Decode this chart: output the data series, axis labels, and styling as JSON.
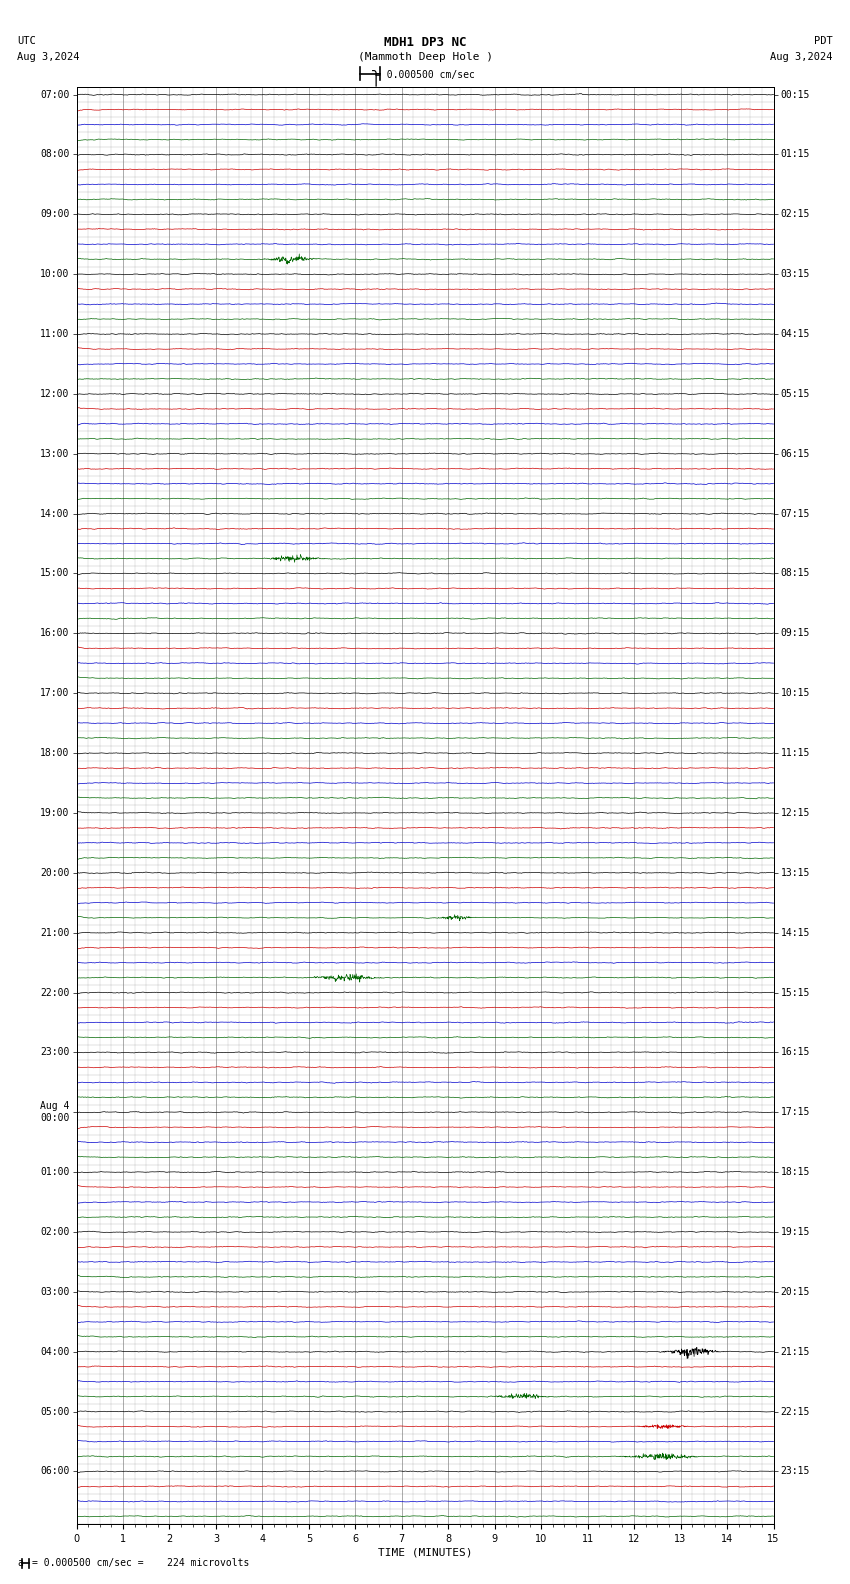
{
  "title_line1": "MDH1 DP3 NC",
  "title_line2": "(Mammoth Deep Hole )",
  "scale_label": "= 0.000500 cm/sec",
  "left_header": "UTC",
  "left_date": "Aug 3,2024",
  "right_header": "PDT",
  "right_date": "Aug 3,2024",
  "bottom_label": "TIME (MINUTES)",
  "footer_label": "= 0.000500 cm/sec =    224 microvolts",
  "utc_labels": [
    "07:00",
    "08:00",
    "09:00",
    "10:00",
    "11:00",
    "12:00",
    "13:00",
    "14:00",
    "15:00",
    "16:00",
    "17:00",
    "18:00",
    "19:00",
    "20:00",
    "21:00",
    "22:00",
    "23:00",
    "Aug 4\n00:00",
    "01:00",
    "02:00",
    "03:00",
    "04:00",
    "05:00",
    "06:00"
  ],
  "pdt_labels": [
    "00:15",
    "01:15",
    "02:15",
    "03:15",
    "04:15",
    "05:15",
    "06:15",
    "07:15",
    "08:15",
    "09:15",
    "10:15",
    "11:15",
    "12:15",
    "13:15",
    "14:15",
    "15:15",
    "16:15",
    "17:15",
    "18:15",
    "19:15",
    "20:15",
    "21:15",
    "22:15",
    "23:15"
  ],
  "n_rows": 96,
  "n_hours": 24,
  "rows_per_hour": 4,
  "x_ticks": [
    0,
    1,
    2,
    3,
    4,
    5,
    6,
    7,
    8,
    9,
    10,
    11,
    12,
    13,
    14,
    15
  ],
  "trace_colors": [
    "#000000",
    "#cc0000",
    "#0000cc",
    "#006600"
  ],
  "background_color": "#ffffff",
  "grid_color": "#888888",
  "noise_amplitude": 0.055,
  "burst_probability": 0.15,
  "burst_amplitude": 0.25
}
